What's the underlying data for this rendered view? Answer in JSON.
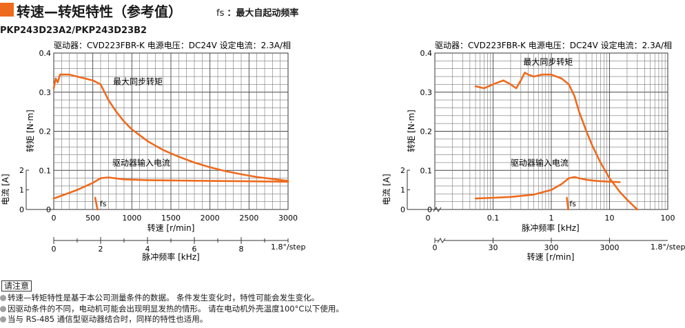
{
  "header": {
    "title": "转速—转矩特性（参考值）",
    "subtitle_key": "fs",
    "subtitle_text": "：最大自起动频率",
    "accent_color": "#ee6a1c"
  },
  "model_label": "PKP243D23A2/PKP243D23B2",
  "chart_data": [
    {
      "type": "line",
      "driver_info": "驱动器：CVD223FBR-K  电源电压：DC24V  设定电流：2.3A/相",
      "xlabel": "转速 [r/min]",
      "ylabel": "转矩 [N·m]",
      "ylabel2": "电流 [A]",
      "x_scale": "linear",
      "xlim": [
        0,
        3000
      ],
      "ylim": [
        0,
        0.4
      ],
      "x_ticks": [
        "0",
        "500",
        "1000",
        "1500",
        "2000",
        "2500",
        "3000"
      ],
      "y_ticks": [
        "0",
        "0.1",
        "0.2",
        "0.3",
        "0.4"
      ],
      "current_ticks": [
        "0",
        "1",
        "2"
      ],
      "secondary_axis": {
        "label": "脉冲频率 [kHz]",
        "ticks": [
          "0",
          "2",
          "4",
          "6",
          "8"
        ],
        "unit_note": "1.8°/step"
      },
      "grid": true,
      "series": [
        {
          "name": "最大同步转矩",
          "color": "#ee6a1c",
          "x": [
            0,
            25,
            50,
            80,
            100,
            150,
            200,
            300,
            400,
            500,
            600,
            650,
            700,
            800,
            900,
            1000,
            1200,
            1400,
            1600,
            1800,
            2000,
            2200,
            2400,
            2600,
            2800,
            3000
          ],
          "y": [
            0.31,
            0.335,
            0.325,
            0.345,
            0.345,
            0.345,
            0.345,
            0.34,
            0.335,
            0.33,
            0.32,
            0.3,
            0.28,
            0.25,
            0.225,
            0.205,
            0.175,
            0.152,
            0.135,
            0.12,
            0.108,
            0.098,
            0.09,
            0.083,
            0.078,
            0.073
          ]
        },
        {
          "name": "驱动器输入电流",
          "color": "#ee6a1c",
          "x": [
            0,
            300,
            500,
            600,
            700,
            900,
            1200,
            1600,
            2000,
            2500,
            3000
          ],
          "y": [
            0.028,
            0.05,
            0.068,
            0.08,
            0.082,
            0.077,
            0.075,
            0.074,
            0.073,
            0.072,
            0.071
          ]
        },
        {
          "name": "fs",
          "color": "#ee6a1c",
          "x": [
            530,
            560
          ],
          "y": [
            0.03,
            0.0
          ]
        }
      ]
    },
    {
      "type": "line",
      "driver_info": "驱动器：CVD223FBR-K  电源电压：DC24V  设定电流：2.3A/相",
      "xlabel": "脉冲频率 [kHz]",
      "ylabel": "转矩 [N·m]",
      "ylabel2": "电流 [A]",
      "x_scale": "log",
      "xlim": [
        0.01,
        100
      ],
      "ylim": [
        0,
        0.4
      ],
      "x_ticks": [
        "0",
        "0.1",
        "1",
        "10",
        "100"
      ],
      "y_ticks": [
        "0",
        "0.1",
        "0.2",
        "0.3",
        "0.4"
      ],
      "current_ticks": [
        "0",
        "1",
        "2"
      ],
      "secondary_axis": {
        "label": "转速 [r/min]",
        "ticks": [
          "0",
          "30",
          "300",
          "3000"
        ],
        "unit_note": "1.8°/step"
      },
      "grid": true,
      "series": [
        {
          "name": "最大同步转矩",
          "color": "#ee6a1c",
          "x": [
            0.05,
            0.07,
            0.1,
            0.15,
            0.2,
            0.25,
            0.3,
            0.35,
            0.4,
            0.5,
            0.7,
            1,
            1.5,
            2,
            2.5,
            3,
            4,
            5,
            7,
            10,
            15,
            20,
            30
          ],
          "y": [
            0.315,
            0.31,
            0.32,
            0.33,
            0.32,
            0.31,
            0.33,
            0.35,
            0.345,
            0.34,
            0.345,
            0.345,
            0.335,
            0.32,
            0.29,
            0.25,
            0.2,
            0.165,
            0.12,
            0.08,
            0.045,
            0.025,
            0.0
          ]
        },
        {
          "name": "驱动器输入电流",
          "color": "#ee6a1c",
          "x": [
            0.05,
            0.1,
            0.2,
            0.5,
            1,
            1.5,
            2,
            2.5,
            3,
            4,
            6,
            10,
            15
          ],
          "y": [
            0.028,
            0.03,
            0.032,
            0.038,
            0.05,
            0.065,
            0.08,
            0.083,
            0.08,
            0.076,
            0.073,
            0.071,
            0.07
          ]
        },
        {
          "name": "fs",
          "color": "#ee6a1c",
          "x": [
            1.85,
            1.95
          ],
          "y": [
            0.03,
            0.0
          ]
        }
      ]
    }
  ],
  "notes": {
    "title": "请注意",
    "items": [
      "转速—转矩特性是基于本公司测量条件的数据。 条件发生变化时，特性可能会发生变化。",
      "因驱动条件的不同，电动机可能会出现明显发热的情形。 请在电动机外壳温度100°C以下使用。",
      "当与 RS-485 通信型驱动器结合时，同样的特性也适用。"
    ]
  }
}
